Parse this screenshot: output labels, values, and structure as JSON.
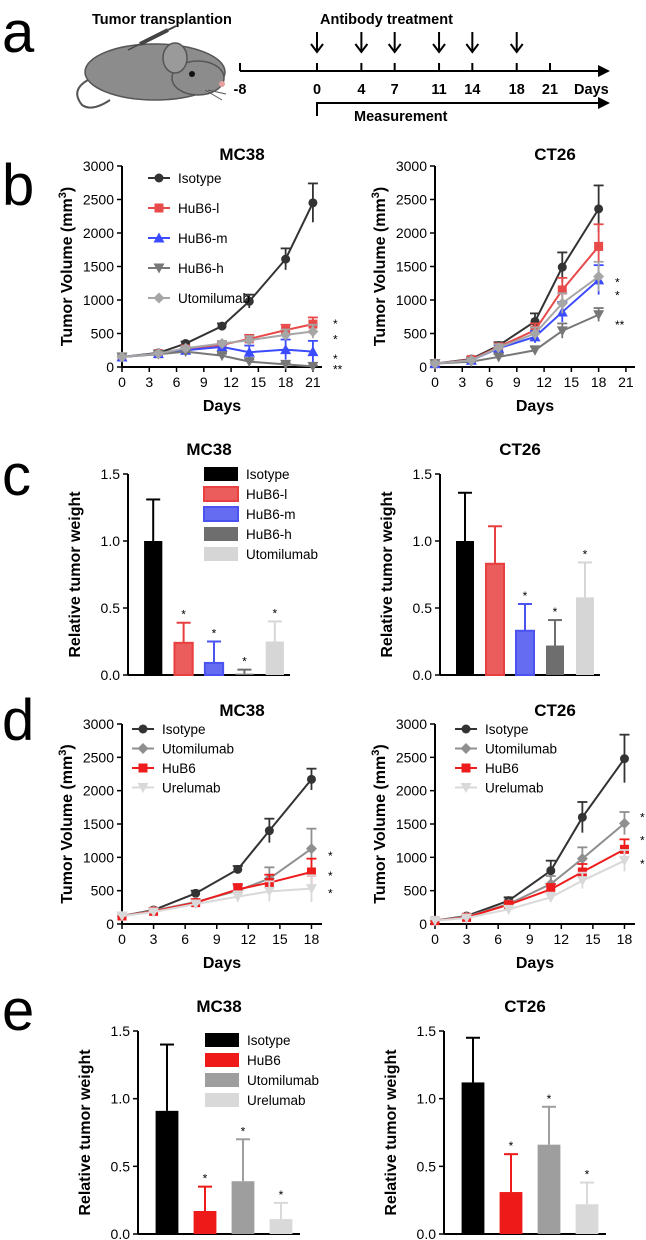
{
  "panels": {
    "a": "a",
    "b": "b",
    "c": "c",
    "d": "d",
    "e": "e"
  },
  "timeline": {
    "transplant_label": "Tumor transplantion",
    "treatment_label": "Antibody treatment",
    "measurement_label": "Measurement",
    "days_label": "Days",
    "start_tick": "-8",
    "ticks": [
      "0",
      "4",
      "7",
      "11",
      "14",
      "18",
      "21"
    ],
    "treatment_days": [
      0,
      4,
      7,
      11,
      14,
      18
    ],
    "colors": {
      "line": "#000000",
      "mouse": "#8c8c8c"
    }
  },
  "chart_data": [
    {
      "id": "b1",
      "type": "line",
      "title": "MC38",
      "xlabel": "Days",
      "ylabel": "Tumor Volume (mm3)",
      "xlim": [
        0,
        22
      ],
      "ylim": [
        0,
        3000
      ],
      "xticks": [
        "0",
        "3",
        "6",
        "9",
        "12",
        "15",
        "18",
        "21"
      ],
      "yticks": [
        "0",
        "500",
        "1000",
        "1500",
        "2000",
        "2500",
        "3000"
      ],
      "series": [
        {
          "name": "Isotype",
          "color": "#333333",
          "marker": "circle",
          "x": [
            0,
            4,
            7,
            11,
            14,
            18,
            21
          ],
          "y": [
            150,
            210,
            350,
            610,
            980,
            1610,
            2450
          ],
          "err": [
            20,
            25,
            30,
            40,
            100,
            160,
            290
          ]
        },
        {
          "name": "HuB6-l",
          "color": "#e84a4a",
          "marker": "square",
          "x": [
            0,
            4,
            7,
            11,
            14,
            18,
            21
          ],
          "y": [
            150,
            200,
            270,
            330,
            420,
            550,
            640
          ],
          "err": [
            20,
            20,
            30,
            40,
            60,
            80,
            100
          ]
        },
        {
          "name": "HuB6-m",
          "color": "#3b4bff",
          "marker": "triangle-up",
          "x": [
            0,
            4,
            7,
            11,
            14,
            18,
            21
          ],
          "y": [
            150,
            200,
            250,
            300,
            220,
            260,
            230
          ],
          "err": [
            20,
            20,
            30,
            40,
            100,
            150,
            160
          ]
        },
        {
          "name": "HuB6-h",
          "color": "#777777",
          "marker": "triangle-down",
          "x": [
            0,
            4,
            7,
            11,
            14,
            18,
            21
          ],
          "y": [
            150,
            190,
            230,
            170,
            80,
            40,
            10
          ],
          "err": [
            20,
            20,
            25,
            30,
            30,
            20,
            10
          ]
        },
        {
          "name": "Utomilumab",
          "color": "#a6a6a6",
          "marker": "diamond",
          "x": [
            0,
            4,
            7,
            11,
            14,
            18,
            21
          ],
          "y": [
            150,
            200,
            280,
            350,
            400,
            480,
            530
          ],
          "err": [
            20,
            20,
            30,
            40,
            60,
            80,
            100
          ]
        }
      ],
      "annotations": [
        {
          "text": "*",
          "y": 700
        },
        {
          "text": "*",
          "y": 470
        },
        {
          "text": "*",
          "y": 180
        },
        {
          "text": "**",
          "y": 20
        }
      ],
      "legend": "top-left"
    },
    {
      "id": "b2",
      "type": "line",
      "title": "CT26",
      "xlabel": "Days",
      "ylabel": "Tumor Volume (mm3)",
      "xlim": [
        0,
        22
      ],
      "ylim": [
        0,
        3000
      ],
      "xticks": [
        "0",
        "3",
        "6",
        "9",
        "12",
        "15",
        "18",
        "21"
      ],
      "yticks": [
        "0",
        "500",
        "1000",
        "1500",
        "2000",
        "2500",
        "3000"
      ],
      "series": [
        {
          "name": "Isotype",
          "color": "#333333",
          "marker": "circle",
          "x": [
            0,
            4,
            7,
            11,
            14,
            18
          ],
          "y": [
            50,
            120,
            320,
            680,
            1490,
            2360
          ],
          "err": [
            20,
            30,
            50,
            120,
            220,
            350
          ]
        },
        {
          "name": "HuB6-l",
          "color": "#e84a4a",
          "marker": "square",
          "x": [
            0,
            4,
            7,
            11,
            14,
            18
          ],
          "y": [
            50,
            110,
            300,
            550,
            1150,
            1800
          ],
          "err": [
            20,
            30,
            50,
            100,
            180,
            330
          ]
        },
        {
          "name": "HuB6-m",
          "color": "#3b4bff",
          "marker": "triangle-up",
          "x": [
            0,
            4,
            7,
            11,
            14,
            18
          ],
          "y": [
            50,
            100,
            280,
            450,
            820,
            1300
          ],
          "err": [
            20,
            30,
            50,
            90,
            150,
            220
          ]
        },
        {
          "name": "HuB6-h",
          "color": "#777777",
          "marker": "triangle-down",
          "x": [
            0,
            4,
            7,
            11,
            14,
            18
          ],
          "y": [
            50,
            80,
            150,
            250,
            540,
            780
          ],
          "err": [
            20,
            20,
            40,
            60,
            110,
            100
          ]
        },
        {
          "name": "Utomilumab",
          "color": "#a6a6a6",
          "marker": "diamond",
          "x": [
            0,
            4,
            7,
            11,
            14,
            18
          ],
          "y": [
            50,
            100,
            290,
            500,
            950,
            1350
          ],
          "err": [
            20,
            30,
            50,
            90,
            150,
            220
          ]
        }
      ],
      "annotations": [
        {
          "text": "*",
          "y": 1320
        },
        {
          "text": "*",
          "y": 1130
        },
        {
          "text": "**",
          "y": 690
        }
      ]
    },
    {
      "id": "c1",
      "type": "bar",
      "title": "MC38",
      "ylabel": "Relative tumor weight",
      "ylim": [
        0,
        1.5
      ],
      "yticks": [
        "0.0",
        "0.5",
        "1.0",
        "1.5"
      ],
      "categories": [
        "Isotype",
        "HuB6-l",
        "HuB6-m",
        "HuB6-h",
        "Utomilumab"
      ],
      "values": [
        1.0,
        0.24,
        0.09,
        0.01,
        0.25
      ],
      "errors": [
        0.31,
        0.15,
        0.16,
        0.03,
        0.15
      ],
      "colors": [
        "#000000",
        "#e83f3f",
        "#4a52f0",
        "#6e6e6e",
        "#d6d6d6"
      ],
      "outlined": [
        false,
        true,
        true,
        false,
        false
      ],
      "stars": [
        "",
        "*",
        "*",
        "*",
        "*"
      ],
      "legend": "top-right"
    },
    {
      "id": "c2",
      "type": "bar",
      "title": "CT26",
      "ylabel": "Relative tumor weight",
      "ylim": [
        0,
        1.5
      ],
      "yticks": [
        "0.0",
        "0.5",
        "1.0",
        "1.5"
      ],
      "categories": [
        "Isotype",
        "HuB6-l",
        "HuB6-m",
        "HuB6-h",
        "Utomilumab"
      ],
      "values": [
        1.0,
        0.83,
        0.33,
        0.22,
        0.58
      ],
      "errors": [
        0.36,
        0.28,
        0.2,
        0.19,
        0.26
      ],
      "colors": [
        "#000000",
        "#e83f3f",
        "#4a52f0",
        "#6e6e6e",
        "#d6d6d6"
      ],
      "outlined": [
        false,
        true,
        true,
        false,
        false
      ],
      "stars": [
        "",
        "",
        "*",
        "*",
        "*"
      ]
    },
    {
      "id": "d1",
      "type": "line",
      "title": "MC38",
      "xlabel": "Days",
      "ylabel": "Tumor Volume (mm3)",
      "xlim": [
        0,
        19
      ],
      "ylim": [
        0,
        3000
      ],
      "xticks": [
        "0",
        "3",
        "6",
        "9",
        "12",
        "15",
        "18"
      ],
      "yticks": [
        "0",
        "500",
        "1000",
        "1500",
        "2000",
        "2500",
        "3000"
      ],
      "series": [
        {
          "name": "Isotype",
          "color": "#333333",
          "marker": "circle",
          "x": [
            0,
            3,
            7,
            11,
            14,
            18
          ],
          "y": [
            120,
            210,
            460,
            820,
            1400,
            2170
          ],
          "err": [
            20,
            30,
            40,
            50,
            180,
            160
          ]
        },
        {
          "name": "Utomilumab",
          "color": "#8f8f8f",
          "marker": "diamond",
          "x": [
            0,
            3,
            7,
            11,
            14,
            18
          ],
          "y": [
            120,
            200,
            330,
            500,
            680,
            1130
          ],
          "err": [
            20,
            20,
            40,
            80,
            170,
            300
          ]
        },
        {
          "name": "HuB6",
          "color": "#ee1c1c",
          "marker": "square",
          "x": [
            0,
            3,
            7,
            11,
            14,
            18
          ],
          "y": [
            120,
            190,
            320,
            520,
            620,
            780
          ],
          "err": [
            20,
            20,
            40,
            80,
            120,
            200
          ]
        },
        {
          "name": "Urelumab",
          "color": "#d9d9d9",
          "marker": "triangle-down",
          "x": [
            0,
            3,
            7,
            11,
            14,
            18
          ],
          "y": [
            120,
            180,
            300,
            410,
            490,
            530
          ],
          "err": [
            20,
            20,
            40,
            80,
            150,
            200
          ]
        }
      ],
      "annotations": [
        {
          "text": "*",
          "y": 1080
        },
        {
          "text": "*",
          "y": 780
        },
        {
          "text": "*",
          "y": 520
        }
      ],
      "legend": "top-left"
    },
    {
      "id": "d2",
      "type": "line",
      "title": "CT26",
      "xlabel": "Days",
      "ylabel": "Tumor Volume (mm3)",
      "xlim": [
        0,
        19
      ],
      "ylim": [
        0,
        3000
      ],
      "xticks": [
        "0",
        "3",
        "6",
        "9",
        "12",
        "15",
        "18"
      ],
      "yticks": [
        "0",
        "500",
        "1000",
        "1500",
        "2000",
        "2500",
        "3000"
      ],
      "series": [
        {
          "name": "Isotype",
          "color": "#333333",
          "marker": "circle",
          "x": [
            0,
            3,
            7,
            11,
            14,
            18
          ],
          "y": [
            50,
            120,
            350,
            800,
            1600,
            2480
          ],
          "err": [
            20,
            30,
            50,
            150,
            230,
            360
          ]
        },
        {
          "name": "Utomilumab",
          "color": "#8f8f8f",
          "marker": "diamond",
          "x": [
            0,
            3,
            7,
            11,
            14,
            18
          ],
          "y": [
            50,
            110,
            300,
            600,
            980,
            1510
          ],
          "err": [
            20,
            30,
            50,
            120,
            170,
            170
          ]
        },
        {
          "name": "HuB6",
          "color": "#ee1c1c",
          "marker": "square",
          "x": [
            0,
            3,
            7,
            11,
            14,
            18
          ],
          "y": [
            50,
            100,
            290,
            520,
            780,
            1120
          ],
          "err": [
            20,
            20,
            40,
            80,
            120,
            150
          ]
        },
        {
          "name": "Urelumab",
          "color": "#d9d9d9",
          "marker": "triangle-down",
          "x": [
            0,
            3,
            7,
            11,
            14,
            18
          ],
          "y": [
            50,
            90,
            220,
            400,
            650,
            950
          ],
          "err": [
            20,
            20,
            40,
            70,
            120,
            160
          ]
        }
      ],
      "annotations": [
        {
          "text": "*",
          "y": 1660
        },
        {
          "text": "*",
          "y": 1310
        },
        {
          "text": "*",
          "y": 960
        }
      ]
    },
    {
      "id": "e1",
      "type": "bar",
      "title": "MC38",
      "ylabel": "Relative tumor weight",
      "ylim": [
        0,
        1.5
      ],
      "yticks": [
        "0.0",
        "0.5",
        "1.0",
        "1.5"
      ],
      "categories": [
        "Isotype",
        "HuB6",
        "Utomilumab",
        "Urelumab"
      ],
      "values": [
        0.91,
        0.17,
        0.39,
        0.11
      ],
      "errors": [
        0.49,
        0.18,
        0.31,
        0.12
      ],
      "colors": [
        "#000000",
        "#ee1a1a",
        "#9e9e9e",
        "#d9d9d9"
      ],
      "outlined": [
        false,
        false,
        false,
        false
      ],
      "stars": [
        "",
        "*",
        "*",
        "*"
      ],
      "legend": "top-right"
    },
    {
      "id": "e2",
      "type": "bar",
      "title": "CT26",
      "ylabel": "Relative tumor weight",
      "ylim": [
        0,
        1.5
      ],
      "yticks": [
        "0.0",
        "0.5",
        "1.0",
        "1.5"
      ],
      "categories": [
        "Isotype",
        "HuB6",
        "Utomilumab",
        "Urelumab"
      ],
      "values": [
        1.12,
        0.31,
        0.66,
        0.22
      ],
      "errors": [
        0.33,
        0.28,
        0.28,
        0.16
      ],
      "colors": [
        "#000000",
        "#ee1a1a",
        "#9e9e9e",
        "#d9d9d9"
      ],
      "outlined": [
        false,
        false,
        false,
        false
      ],
      "stars": [
        "",
        "*",
        "*",
        "*"
      ]
    }
  ]
}
